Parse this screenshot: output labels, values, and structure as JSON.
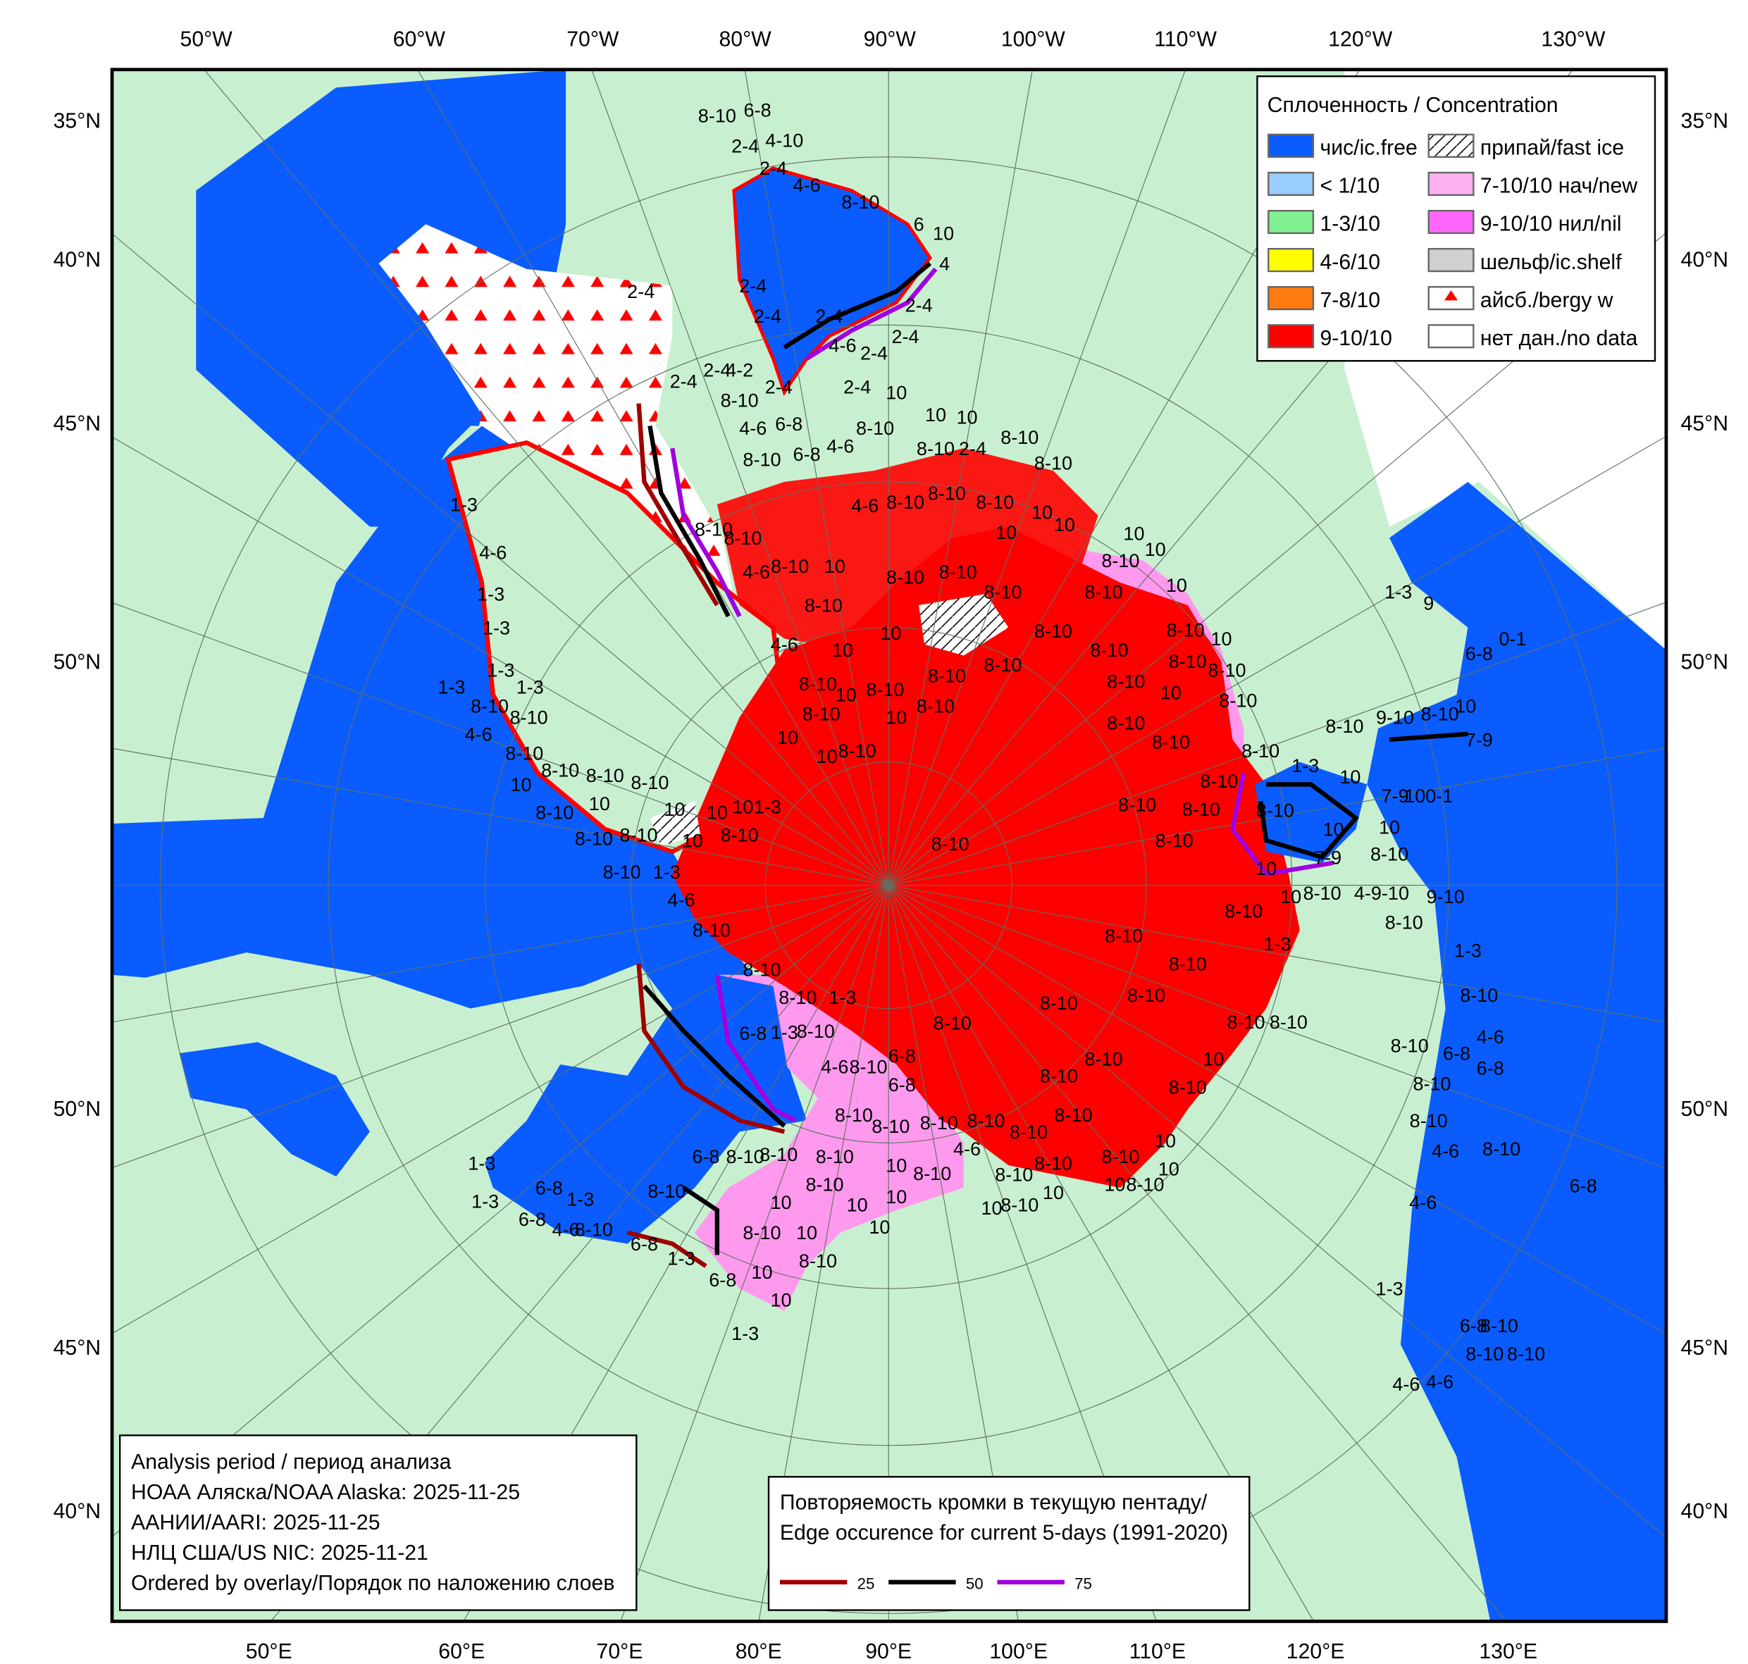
{
  "axes": {
    "top_longitudes": [
      "50°W",
      "60°W",
      "70°W",
      "80°W",
      "90°W",
      "100°W",
      "110°W",
      "120°W",
      "130°W"
    ],
    "bottom_longitudes": [
      "50°E",
      "60°E",
      "70°E",
      "80°E",
      "90°E",
      "100°E",
      "110°E",
      "120°E",
      "130°E"
    ],
    "left_latitudes": [
      "35°N",
      "40°N",
      "45°N",
      "50°N",
      "50°N",
      "45°N",
      "40°N"
    ],
    "right_latitudes": [
      "35°N",
      "40°N",
      "45°N",
      "50°N",
      "50°N",
      "45°N",
      "40°N"
    ]
  },
  "legend": {
    "title": "Сплоченность / Concentration",
    "items_left": [
      {
        "label": "чис/ic.free",
        "color": "#0a5cff"
      },
      {
        "label": "< 1/10",
        "color": "#99ccff"
      },
      {
        "label": "1-3/10",
        "color": "#80f090"
      },
      {
        "label": "4-6/10",
        "color": "#ffff00"
      },
      {
        "label": "7-8/10",
        "color": "#ff7a10"
      },
      {
        "label": "9-10/10",
        "color": "#ff0000"
      }
    ],
    "items_right": [
      {
        "label": "припай/fast ice",
        "color": "#ffffff",
        "icon": "hatch"
      },
      {
        "label": "7-10/10 нач/new",
        "color": "#ffb0f0"
      },
      {
        "label": "9-10/10 нил/nil",
        "color": "#ff66ff"
      },
      {
        "label": "шельф/ic.shelf",
        "color": "#d0d0d0"
      },
      {
        "label": "айсб./bergy w",
        "color": "#ffffff",
        "icon": "red-triangle"
      },
      {
        "label": "нет дан./no data",
        "color": "#ffffff"
      }
    ]
  },
  "analysis": {
    "title": "Analysis period / период анализа",
    "lines": [
      "НОАА Аляска/NOAA Alaska: 2025-11-25",
      "ААНИИ/AARI: 2025-11-25",
      "НЛЦ США/US NIC: 2025-11-21",
      "Ordered by overlay/Порядок по наложению слоев"
    ]
  },
  "edge_occurrence": {
    "title_ru": "Повторяемость кромки в текущую пентаду/",
    "title_en": "Edge occurence for current 5-days (1991-2020)",
    "lines": [
      {
        "value": "25",
        "color": "#a00000"
      },
      {
        "value": "50",
        "color": "#000000"
      },
      {
        "value": "75",
        "color": "#a000e0"
      }
    ]
  },
  "colors": {
    "land": "#c8f0d0",
    "open_water": "#0a5cff",
    "ice_9_10": "#ff0000",
    "new_ice": "#ff99ee",
    "no_data": "#ffffff",
    "bergy": "#ff0000"
  },
  "map_labels": [
    "8-10",
    "6-8",
    "2-4",
    "4-10",
    "2-4",
    "4-6",
    "8-10",
    "6",
    "10",
    "4",
    "2-4",
    "2-4",
    "2-4",
    "2-4",
    "2-4",
    "2-4",
    "4-6",
    "2-4",
    "2-4",
    "4-2",
    "2-4",
    "8-10",
    "2-4",
    "2-4",
    "10",
    "10",
    "10",
    "4-6",
    "6-8",
    "8-10",
    "8-10",
    "8-10",
    "6-8",
    "4-6",
    "8-10",
    "2-4",
    "8-10",
    "1-3",
    "4-6",
    "1-3",
    "1-3",
    "1-3",
    "1-3",
    "1-3",
    "8-10",
    "8-10",
    "4-6",
    "8-10",
    "8-10",
    "4-6",
    "8-10",
    "10",
    "8-10",
    "8-10",
    "10",
    "8-10",
    "8-10",
    "4-6",
    "8-10",
    "10",
    "10",
    "10",
    "8-10",
    "10",
    "10",
    "8-10",
    "8-10",
    "8-10",
    "4-6",
    "10",
    "10",
    "8-10",
    "8-10",
    "8-10",
    "10",
    "8-10",
    "8-10",
    "8-10",
    "10",
    "8-10",
    "8-10",
    "8-10",
    "8-10",
    "8-10",
    "8-10",
    "10",
    "10",
    "8-10",
    "8-10",
    "8-10",
    "10",
    "10",
    "8-10",
    "8-10",
    "8-10",
    "8-10",
    "10",
    "8-10",
    "8-10",
    "10",
    "10",
    "10",
    "10",
    "1-3",
    "8-10",
    "8-10",
    "10",
    "8-10",
    "8-10",
    "1-3",
    "4-6",
    "8-10",
    "8-10",
    "8-10",
    "1-3",
    "6-8",
    "1-3",
    "8-10",
    "6-8",
    "4-6",
    "8-10",
    "6-8",
    "8-10",
    "8-10",
    "8-10",
    "8-10",
    "8-10",
    "8-10",
    "6-8",
    "8-10",
    "8-10",
    "8-10",
    "4-6",
    "8-10",
    "10",
    "8-10",
    "8-10",
    "8-10",
    "8-10",
    "10",
    "10",
    "10",
    "8-10",
    "10",
    "10",
    "8-10",
    "10",
    "10",
    "10",
    "10",
    "8-10",
    "10",
    "8-10",
    "6-8",
    "10",
    "10",
    "1-3",
    "1-3",
    "1-3",
    "6-8",
    "1-3",
    "6-8",
    "4-6",
    "8-10",
    "6-8",
    "1-3",
    "8-10",
    "8-10",
    "8-10",
    "8-10",
    "8-10",
    "8-10",
    "8-10",
    "1-3",
    "8-10",
    "10",
    "8-10",
    "9-10",
    "8-10",
    "10",
    "7-9",
    "6-8",
    "0-1",
    "1-3",
    "9",
    "7-9",
    "100-1",
    "10",
    "10",
    "10",
    "7-9",
    "8-10",
    "8-10",
    "10",
    "8-10",
    "4-9-10",
    "9-10",
    "8-10",
    "1-3",
    "1-3",
    "8-10",
    "8-10",
    "8-10",
    "8-10",
    "8-10",
    "8-10",
    "8-10",
    "8-10",
    "8-10",
    "6-8",
    "4-6",
    "6-8",
    "8-10",
    "8-10",
    "8-10",
    "10",
    "8-10",
    "8-10",
    "4-6",
    "8-10",
    "6-8",
    "4-6",
    "1-3",
    "6-8",
    "8-10",
    "8-10",
    "8-10",
    "4-6",
    "4-6"
  ]
}
